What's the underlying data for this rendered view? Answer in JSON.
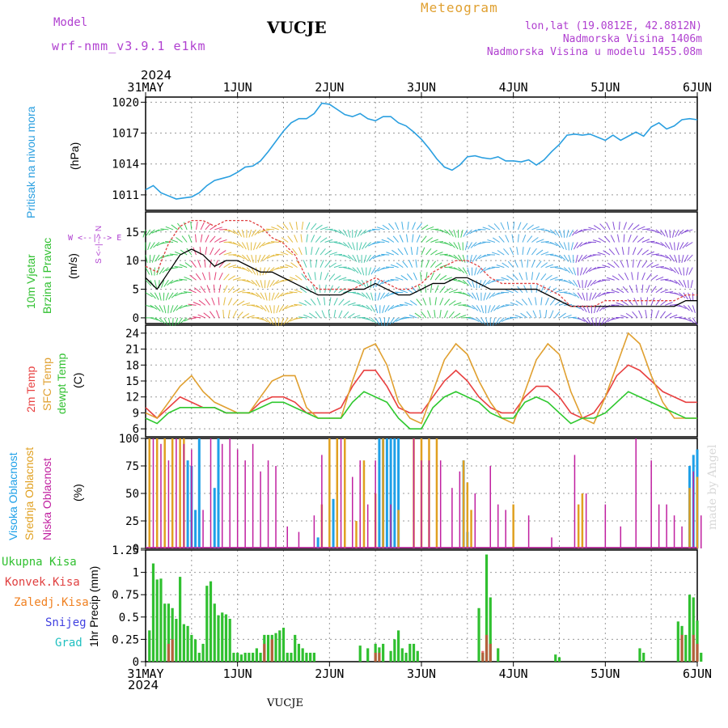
{
  "header": {
    "model_label": "Model",
    "model_name": "wrf-nmm_v3.9.1  e1km",
    "station": "VUCJE",
    "meteogram": "Meteogram",
    "lonlat": "lon,lat (19.0812E, 42.8812N)",
    "elevation": "Nadmorska Visina 1406m",
    "model_elevation": "Nadmorska Visina u modelu 1455.08m"
  },
  "colors": {
    "pressure": "#2a9fe0",
    "temp2m": "#e84040",
    "sfc_temp": "#e0a030",
    "dewpt": "#2ec82e",
    "high_cloud": "#1ea0e8",
    "mid_cloud": "#e0a020",
    "low_cloud": "#c020a0",
    "total_precip": "#30c030",
    "conv_precip": "#e04040",
    "frozen_precip": "#f08020",
    "snow": "#4040e0",
    "hail": "#20c0c0",
    "wind_speed": "#000000",
    "wind_gust": "#e04040",
    "legend_purple": "#b040d0"
  },
  "time_axis": {
    "year": "2024",
    "ticks": [
      "31MAY",
      "1JUN",
      "2JUN",
      "3JUN",
      "4JUN",
      "5JUN",
      "6JUN"
    ],
    "bottom_station": "VUCJE"
  },
  "labels": {
    "pressure": {
      "title": "Pritisak na nivou mora",
      "unit": "(hPa)"
    },
    "wind": {
      "title1": "10m Vjetar",
      "title2": "Brzina i Pravac",
      "unit": "(m/s)",
      "compass": "W <--|--> E",
      "compass_ns": "S <--|--> N"
    },
    "temp": {
      "t2m": "2m Temp",
      "sfc": "SFC Temp",
      "dew": "dewpt Temp",
      "unit": "(C)"
    },
    "cloud": {
      "high": "Visoka Oblacnost",
      "mid": "Srednja Oblacnost",
      "low": "Niska Oblacnost",
      "unit": "(%)"
    },
    "precip": {
      "legend": [
        "Ukupna Kisa",
        "Konvek.Kisa",
        "Zaledj.Kisa",
        "Snijeg",
        "Grad"
      ],
      "unit": "1hr Precip (mm)"
    },
    "credit": "made by Angel"
  },
  "chart_data": [
    {
      "type": "line",
      "name": "pressure",
      "x_unit": "hours since 31MAY 00UTC",
      "ylim": [
        1009.5,
        1020.5
      ],
      "yticks": [
        1011,
        1014,
        1017,
        1020
      ],
      "grid": true,
      "x": [
        0,
        2,
        4,
        6,
        8,
        10,
        12,
        14,
        16,
        18,
        20,
        22,
        24,
        26,
        28,
        30,
        32,
        34,
        36,
        38,
        40,
        42,
        44,
        46,
        48,
        50,
        52,
        54,
        56,
        58,
        60,
        62,
        64,
        66,
        68,
        70,
        72,
        74,
        76,
        78,
        80,
        82,
        84,
        86,
        88,
        90,
        92,
        94,
        96,
        98,
        100,
        102,
        104,
        106,
        108,
        110,
        112,
        114,
        116,
        118,
        120,
        122,
        124,
        126,
        128,
        130,
        132,
        134,
        136,
        138,
        140,
        142,
        144
      ],
      "y": [
        1011.5,
        1011.9,
        1011.2,
        1010.9,
        1010.6,
        1010.7,
        1010.8,
        1011.2,
        1011.9,
        1012.4,
        1012.6,
        1012.8,
        1013.2,
        1013.7,
        1013.8,
        1014.3,
        1015.2,
        1016.2,
        1017.2,
        1018.0,
        1018.4,
        1018.4,
        1018.9,
        1019.9,
        1019.8,
        1019.3,
        1018.8,
        1018.6,
        1018.9,
        1018.4,
        1018.2,
        1018.6,
        1018.6,
        1018.0,
        1017.7,
        1017.1,
        1016.4,
        1015.5,
        1014.5,
        1013.7,
        1013.4,
        1013.9,
        1014.7,
        1014.8,
        1014.6,
        1014.5,
        1014.7,
        1014.3,
        1014.3,
        1014.2,
        1014.4,
        1013.9,
        1014.4,
        1015.2,
        1015.9,
        1016.8,
        1016.9,
        1016.8,
        1016.9,
        1016.6,
        1016.3,
        1016.8,
        1016.3,
        1016.7,
        1017.1,
        1016.7,
        1017.6,
        1018.0,
        1017.4,
        1017.7,
        1018.3,
        1018.4,
        1018.3
      ]
    },
    {
      "type": "line",
      "name": "wind",
      "ylim": [
        -1,
        18.5
      ],
      "yticks": [
        0,
        5,
        10,
        15
      ],
      "grid": true,
      "series": [
        {
          "name": "wind speed",
          "x": [
            0,
            3,
            6,
            9,
            12,
            15,
            18,
            21,
            24,
            27,
            30,
            33,
            36,
            39,
            42,
            45,
            48,
            51,
            54,
            57,
            60,
            63,
            66,
            69,
            72,
            75,
            78,
            81,
            84,
            87,
            90,
            93,
            96,
            99,
            102,
            105,
            108,
            111,
            114,
            117,
            120,
            123,
            126,
            129,
            132,
            135,
            138,
            141,
            144
          ],
          "y": [
            7,
            5,
            8,
            11,
            12,
            11,
            9,
            10,
            10,
            9,
            8,
            8,
            7,
            6,
            5,
            4,
            4,
            4,
            5,
            5,
            6,
            5,
            4,
            4,
            5,
            6,
            6,
            7,
            7,
            6,
            5,
            5,
            5,
            5,
            5,
            4,
            3,
            2,
            2,
            2,
            2,
            2,
            2,
            2,
            2,
            2,
            2,
            3,
            3
          ]
        },
        {
          "name": "wind gust",
          "x": [
            0,
            3,
            6,
            9,
            12,
            15,
            18,
            21,
            24,
            27,
            30,
            33,
            36,
            39,
            42,
            45,
            48,
            51,
            54,
            57,
            60,
            63,
            66,
            69,
            72,
            75,
            78,
            81,
            84,
            87,
            90,
            93,
            96,
            99,
            102,
            105,
            108,
            111,
            114,
            117,
            120,
            123,
            126,
            129,
            132,
            135,
            138,
            141,
            144
          ],
          "y": [
            9,
            8,
            13,
            16,
            17,
            17,
            16,
            17,
            17,
            17,
            16,
            14,
            13,
            11,
            7,
            5,
            5,
            5,
            5,
            6,
            7,
            6,
            5,
            5,
            6,
            8,
            9,
            10,
            10,
            9,
            7,
            6,
            6,
            6,
            6,
            5,
            4,
            2,
            2,
            2,
            3,
            3,
            3,
            3,
            3,
            3,
            3,
            4,
            4
          ]
        }
      ]
    },
    {
      "type": "line",
      "name": "temperature",
      "ylim": [
        4.5,
        25.5
      ],
      "yticks": [
        6,
        9,
        12,
        15,
        18,
        21,
        24
      ],
      "grid": true,
      "series": [
        {
          "name": "2m Temp",
          "x": [
            0,
            3,
            6,
            9,
            12,
            15,
            18,
            21,
            24,
            27,
            30,
            33,
            36,
            39,
            42,
            45,
            48,
            51,
            54,
            57,
            60,
            63,
            66,
            69,
            72,
            75,
            78,
            81,
            84,
            87,
            90,
            93,
            96,
            99,
            102,
            105,
            108,
            111,
            114,
            117,
            120,
            123,
            126,
            129,
            132,
            135,
            138,
            141,
            144
          ],
          "y": [
            10,
            8,
            10,
            12,
            11,
            10,
            10,
            9,
            9,
            9,
            11,
            12,
            12,
            11,
            9,
            9,
            9,
            10,
            14,
            17,
            17,
            14,
            10,
            9,
            9,
            12,
            15,
            17,
            15,
            12,
            10,
            9,
            9,
            12,
            14,
            14,
            12,
            9,
            8,
            9,
            12,
            16,
            18,
            17,
            15,
            13,
            12,
            11,
            11
          ]
        },
        {
          "name": "SFC Temp",
          "x": [
            0,
            3,
            6,
            9,
            12,
            15,
            18,
            21,
            24,
            27,
            30,
            33,
            36,
            39,
            42,
            45,
            48,
            51,
            54,
            57,
            60,
            63,
            66,
            69,
            72,
            75,
            78,
            81,
            84,
            87,
            90,
            93,
            96,
            99,
            102,
            105,
            108,
            111,
            114,
            117,
            120,
            123,
            126,
            129,
            132,
            135,
            138,
            141,
            144
          ],
          "y": [
            9,
            8,
            11,
            14,
            16,
            13,
            11,
            10,
            9,
            9,
            12,
            15,
            16,
            16,
            10,
            8,
            8,
            8,
            15,
            21,
            22,
            18,
            11,
            8,
            7,
            13,
            19,
            22,
            20,
            15,
            11,
            8,
            7,
            13,
            19,
            22,
            20,
            13,
            8,
            7,
            12,
            18,
            24,
            22,
            16,
            11,
            8,
            8,
            8
          ]
        },
        {
          "name": "dewpt Temp",
          "x": [
            0,
            3,
            6,
            9,
            12,
            15,
            18,
            21,
            24,
            27,
            30,
            33,
            36,
            39,
            42,
            45,
            48,
            51,
            54,
            57,
            60,
            63,
            66,
            69,
            72,
            75,
            78,
            81,
            84,
            87,
            90,
            93,
            96,
            99,
            102,
            105,
            108,
            111,
            114,
            117,
            120,
            123,
            126,
            129,
            132,
            135,
            138,
            141,
            144
          ],
          "y": [
            8,
            7,
            9,
            10,
            10,
            10,
            10,
            9,
            9,
            9,
            10,
            11,
            11,
            10,
            9,
            8,
            8,
            8,
            11,
            13,
            12,
            11,
            8,
            6,
            6,
            10,
            12,
            13,
            12,
            11,
            9,
            8,
            8,
            11,
            12,
            11,
            9,
            7,
            8,
            8,
            9,
            11,
            13,
            12,
            11,
            10,
            9,
            8,
            8
          ]
        }
      ]
    },
    {
      "type": "bar",
      "name": "cloud cover",
      "ylim": [
        0,
        100
      ],
      "yticks": [
        0,
        25,
        50,
        75,
        100
      ],
      "grid": true,
      "series": [
        {
          "name": "Visoka Oblacnost",
          "x": [
            11,
            12,
            13,
            14,
            18,
            19,
            45,
            49,
            61,
            62,
            63,
            64,
            65,
            66,
            83,
            84,
            142,
            143,
            144
          ],
          "y": [
            80,
            75,
            35,
            100,
            55,
            100,
            10,
            45,
            100,
            100,
            100,
            100,
            100,
            100,
            80,
            15,
            75,
            85,
            90
          ]
        },
        {
          "name": "Srednja Oblacnost",
          "x": [
            1,
            3,
            5,
            7,
            9,
            10,
            46,
            48,
            50,
            52,
            55,
            57,
            60,
            62,
            66,
            70,
            72,
            74,
            76,
            83,
            84,
            85,
            96,
            113,
            114,
            142,
            144
          ],
          "y": [
            100,
            100,
            100,
            100,
            100,
            100,
            40,
            100,
            100,
            100,
            25,
            80,
            50,
            100,
            35,
            100,
            100,
            100,
            100,
            80,
            60,
            35,
            40,
            40,
            50,
            55,
            65
          ]
        },
        {
          "name": "Niska Oblacnost",
          "x": [
            2,
            4,
            6,
            8,
            10,
            12,
            15,
            17,
            20,
            22,
            24,
            26,
            28,
            30,
            32,
            34,
            37,
            40,
            44,
            46,
            51,
            54,
            56,
            58,
            60,
            64,
            70,
            72,
            74,
            77,
            80,
            82,
            86,
            90,
            92,
            94,
            100,
            106,
            112,
            115,
            120,
            124,
            128,
            132,
            134,
            136,
            138,
            140,
            143,
            145
          ],
          "y": [
            100,
            95,
            80,
            100,
            95,
            90,
            35,
            100,
            95,
            100,
            90,
            80,
            95,
            70,
            80,
            75,
            20,
            15,
            30,
            85,
            100,
            65,
            80,
            40,
            80,
            40,
            100,
            80,
            80,
            80,
            55,
            70,
            50,
            75,
            40,
            35,
            30,
            10,
            85,
            50,
            40,
            20,
            100,
            80,
            40,
            40,
            30,
            20,
            70,
            30
          ]
        }
      ]
    },
    {
      "type": "bar",
      "name": "1hr precipitation",
      "ylim": [
        0,
        1.25
      ],
      "yticks": [
        0,
        0.25,
        0.5,
        0.75,
        1,
        1.25
      ],
      "grid": true,
      "series": [
        {
          "name": "Ukupna Kisa",
          "x": [
            1,
            2,
            3,
            4,
            5,
            6,
            7,
            8,
            9,
            10,
            11,
            12,
            13,
            14,
            15,
            16,
            17,
            18,
            19,
            20,
            21,
            22,
            23,
            24,
            25,
            26,
            27,
            28,
            29,
            30,
            31,
            32,
            33,
            34,
            35,
            36,
            37,
            38,
            39,
            40,
            41,
            42,
            43,
            44,
            56,
            58,
            60,
            61,
            62,
            64,
            65,
            66,
            67,
            68,
            69,
            70,
            71,
            87,
            88,
            89,
            90,
            92,
            107,
            108,
            129,
            130,
            139,
            140,
            141,
            142,
            143,
            144,
            145
          ],
          "y": [
            0.35,
            1.1,
            0.92,
            0.93,
            0.65,
            0.65,
            0.6,
            0.48,
            0.95,
            0.42,
            0.4,
            0.3,
            0.25,
            0.1,
            0.2,
            0.85,
            0.9,
            0.65,
            0.52,
            0.55,
            0.53,
            0.48,
            0.1,
            0.1,
            0.08,
            0.1,
            0.1,
            0.1,
            0.15,
            0.1,
            0.3,
            0.3,
            0.3,
            0.32,
            0.35,
            0.38,
            0.1,
            0.1,
            0.3,
            0.2,
            0.15,
            0.1,
            0.1,
            0.1,
            0.18,
            0.15,
            0.2,
            0.16,
            0.2,
            0.12,
            0.25,
            0.35,
            0.15,
            0.1,
            0.2,
            0.2,
            0.12,
            0.6,
            0.1,
            1.2,
            0.72,
            0.15,
            0.08,
            0.05,
            0.15,
            0.1,
            0.45,
            0.4,
            0.3,
            0.75,
            0.72,
            0.46,
            0.1
          ]
        },
        {
          "name": "Konvek.Kisa",
          "x": [
            6,
            7,
            31,
            33,
            60,
            61,
            88,
            89,
            90,
            140,
            143,
            144
          ],
          "y": [
            0.2,
            0.25,
            0.2,
            0.25,
            0.1,
            0.1,
            0.12,
            0.3,
            0.2,
            0.3,
            0.3,
            0.2
          ]
        }
      ]
    }
  ]
}
